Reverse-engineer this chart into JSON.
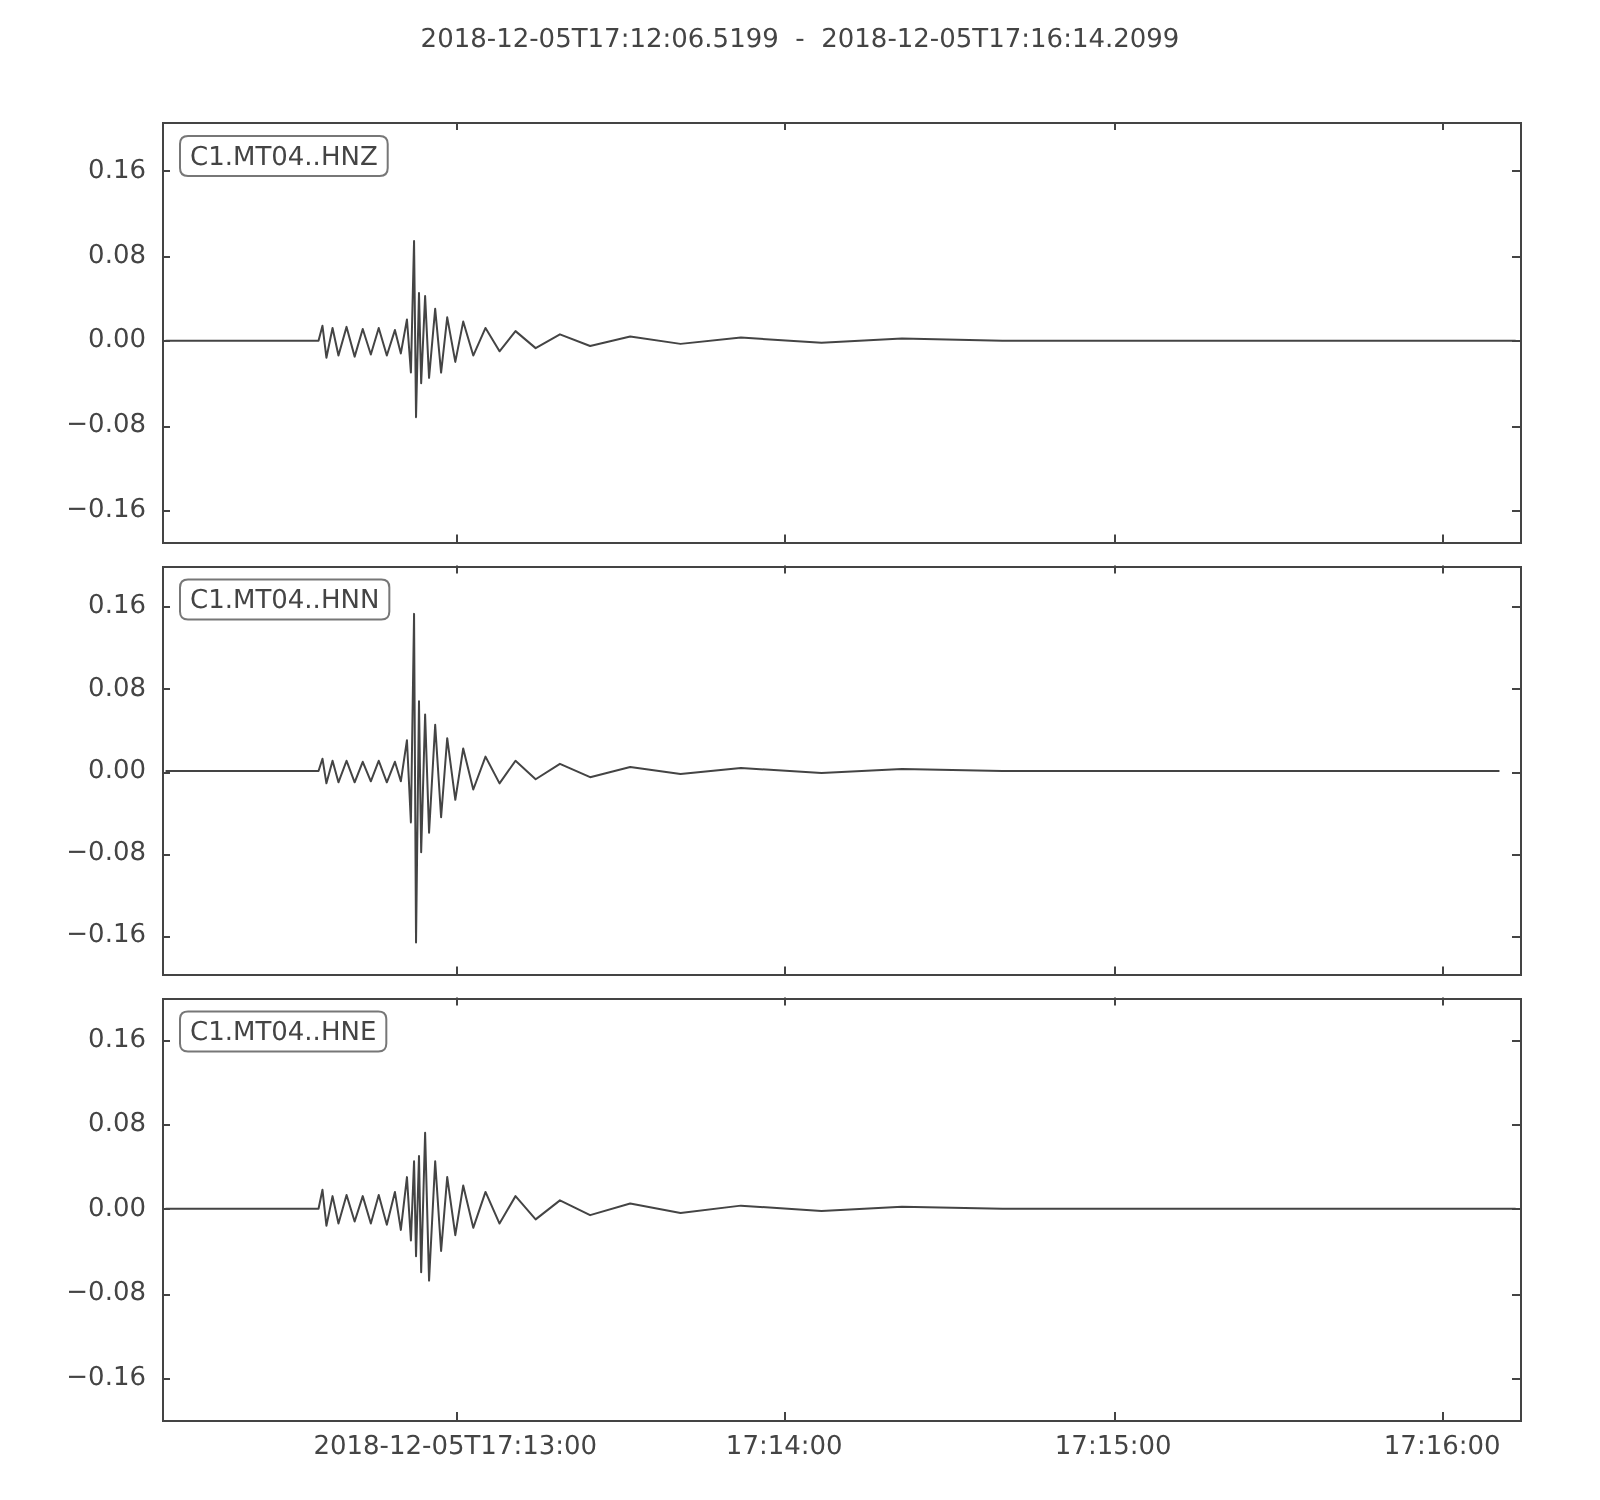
{
  "chart_data": [
    {
      "type": "line",
      "title": "2018-12-05T17:12:06.5199  -  2018-12-05T17:16:14.2099",
      "annotations": [
        "C1.MT04..HNZ"
      ],
      "color": "#444444",
      "tick_labels": "y",
      "x": [
        17.20199,
        17.20974,
        17.20994,
        17.21014,
        17.21045,
        17.21075,
        17.21116,
        17.21157,
        17.21198,
        17.21239,
        17.21279,
        17.2132,
        17.21361,
        17.21391,
        17.21422,
        17.21442,
        17.21458,
        17.21468,
        17.21483,
        17.21494,
        17.21514,
        17.21534,
        17.21565,
        17.21595,
        17.21626,
        17.21667,
        17.21707,
        17.21758,
        17.2182,
        17.21891,
        17.21972,
        17.22074,
        17.22197,
        17.2235,
        17.22553,
        17.22808,
        17.23114,
        17.23522,
        17.2393,
        17.24439,
        17.27039
      ],
      "values": [
        0,
        0,
        0.014,
        -0.016,
        0.012,
        -0.014,
        0.013,
        -0.015,
        0.011,
        -0.013,
        0.012,
        -0.014,
        0.01,
        -0.012,
        0.02,
        -0.03,
        0.094,
        -0.072,
        0.045,
        -0.04,
        0.042,
        -0.035,
        0.03,
        -0.03,
        0.022,
        -0.02,
        0.018,
        -0.014,
        0.012,
        -0.01,
        0.009,
        -0.007,
        0.006,
        -0.005,
        0.004,
        -0.003,
        0.003,
        -0.002,
        0.002,
        0,
        0
      ],
      "xlim": [
        17.20181,
        17.27061
      ],
      "ylim": [
        -0.19,
        0.206
      ],
      "xticks": [
        {
          "value": 17.216667,
          "label": null
        },
        {
          "value": 17.233333,
          "label": null
        },
        {
          "value": 17.25,
          "label": null
        },
        {
          "value": 17.266667,
          "label": null
        }
      ],
      "yticks": [
        {
          "value": -0.16,
          "label": "−0.16"
        },
        {
          "value": -0.08,
          "label": "−0.08"
        },
        {
          "value": 0,
          "label": "0.00"
        },
        {
          "value": 0.08,
          "label": "0.08"
        },
        {
          "value": 0.16,
          "label": "0.16"
        }
      ]
    },
    {
      "type": "line",
      "annotations": [
        "C1.MT04..HNN"
      ],
      "color": "#444444",
      "tick_labels": "y",
      "x": [
        17.20199,
        17.20974,
        17.20994,
        17.21014,
        17.21045,
        17.21075,
        17.21116,
        17.21157,
        17.21198,
        17.21239,
        17.21279,
        17.2132,
        17.21361,
        17.21391,
        17.21422,
        17.21442,
        17.21458,
        17.21468,
        17.21483,
        17.21494,
        17.21514,
        17.21534,
        17.21565,
        17.21595,
        17.21626,
        17.21667,
        17.21707,
        17.21758,
        17.2182,
        17.21891,
        17.21972,
        17.22074,
        17.22197,
        17.2235,
        17.22553,
        17.22808,
        17.23114,
        17.23522,
        17.2393,
        17.24439,
        17.26957
      ],
      "values": [
        0,
        0,
        0.012,
        -0.012,
        0.01,
        -0.011,
        0.01,
        -0.011,
        0.009,
        -0.01,
        0.01,
        -0.011,
        0.009,
        -0.01,
        0.03,
        -0.05,
        0.153,
        -0.167,
        0.068,
        -0.079,
        0.055,
        -0.06,
        0.045,
        -0.045,
        0.032,
        -0.028,
        0.022,
        -0.018,
        0.014,
        -0.012,
        0.01,
        -0.008,
        0.007,
        -0.006,
        0.004,
        -0.003,
        0.003,
        -0.002,
        0.002,
        0,
        0
      ],
      "xlim": [
        17.20181,
        17.27061
      ],
      "ylim": [
        -0.198,
        0.2
      ],
      "xticks": [
        {
          "value": 17.216667,
          "label": null
        },
        {
          "value": 17.233333,
          "label": null
        },
        {
          "value": 17.25,
          "label": null
        },
        {
          "value": 17.266667,
          "label": null
        }
      ],
      "yticks": [
        {
          "value": -0.16,
          "label": "−0.16"
        },
        {
          "value": -0.08,
          "label": "−0.08"
        },
        {
          "value": 0,
          "label": "0.00"
        },
        {
          "value": 0.08,
          "label": "0.08"
        },
        {
          "value": 0.16,
          "label": "0.16"
        }
      ]
    },
    {
      "type": "line",
      "annotations": [
        "C1.MT04..HNE"
      ],
      "color": "#444444",
      "x": [
        17.20199,
        17.20974,
        17.20994,
        17.21014,
        17.21045,
        17.21075,
        17.21116,
        17.21157,
        17.21198,
        17.21239,
        17.21279,
        17.2132,
        17.21361,
        17.21391,
        17.21422,
        17.21442,
        17.21458,
        17.21468,
        17.21483,
        17.21494,
        17.21514,
        17.21534,
        17.21565,
        17.21595,
        17.21626,
        17.21667,
        17.21707,
        17.21758,
        17.2182,
        17.21891,
        17.21972,
        17.22074,
        17.22197,
        17.2235,
        17.22553,
        17.22808,
        17.23114,
        17.23522,
        17.2393,
        17.24439,
        17.27039
      ],
      "values": [
        0,
        0,
        0.018,
        -0.016,
        0.012,
        -0.014,
        0.013,
        -0.012,
        0.012,
        -0.014,
        0.013,
        -0.015,
        0.016,
        -0.02,
        0.03,
        -0.03,
        0.045,
        -0.045,
        0.05,
        -0.06,
        0.072,
        -0.068,
        0.045,
        -0.04,
        0.03,
        -0.025,
        0.022,
        -0.018,
        0.016,
        -0.014,
        0.012,
        -0.01,
        0.008,
        -0.006,
        0.005,
        -0.004,
        0.003,
        -0.002,
        0.002,
        0,
        0
      ],
      "xlim": [
        17.20181,
        17.27061
      ],
      "ylim": [
        -0.2,
        0.2
      ],
      "xticks": [
        {
          "value": 17.216667,
          "label": "2018-12-05T17:13:00"
        },
        {
          "value": 17.233333,
          "label": "17:14:00"
        },
        {
          "value": 17.25,
          "label": "17:15:00"
        },
        {
          "value": 17.266667,
          "label": "17:16:00"
        }
      ],
      "yticks": [
        {
          "value": -0.16,
          "label": "−0.16"
        },
        {
          "value": -0.08,
          "label": "−0.08"
        },
        {
          "value": 0,
          "label": "0.00"
        },
        {
          "value": 0.08,
          "label": "0.08"
        },
        {
          "value": 0.16,
          "label": "0.16"
        }
      ]
    }
  ]
}
